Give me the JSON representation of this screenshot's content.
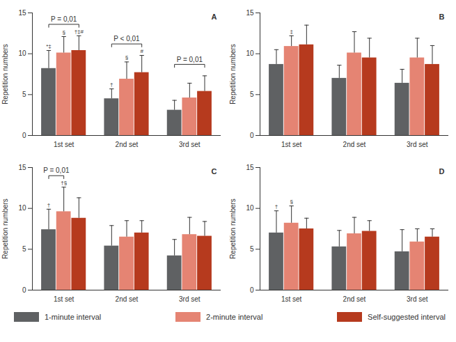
{
  "chart_data": {
    "type": "bar",
    "y_label": "Repetition numbers",
    "categories": [
      "1st set",
      "2nd set",
      "3rd set"
    ],
    "ylim": [
      0,
      15
    ],
    "yticks": [
      0,
      5,
      10,
      15
    ],
    "series": [
      {
        "name": "1-minute interval",
        "color": "#5f6163"
      },
      {
        "name": "2-minute interval",
        "color": "#e58473"
      },
      {
        "name": "Self-suggested interval",
        "color": "#b63a1e"
      }
    ],
    "panels": [
      {
        "title": "A",
        "values": [
          [
            8.2,
            4.5,
            3.1
          ],
          [
            10.1,
            6.9,
            4.6
          ],
          [
            10.4,
            7.7,
            5.4
          ]
        ],
        "errors": [
          [
            2.2,
            1.2,
            1.2
          ],
          [
            2.0,
            2.1,
            1.8
          ],
          [
            1.8,
            2.1,
            1.9
          ]
        ],
        "symbols": [
          [
            "*‡",
            "†",
            null
          ],
          [
            "§",
            "§",
            null
          ],
          [
            "†‡#",
            "#",
            null
          ]
        ],
        "brackets": [
          {
            "category": "1st set",
            "from": "1-minute interval",
            "to": "Self-suggested interval",
            "label": "P = 0,01"
          },
          {
            "category": "2nd set",
            "from": "1-minute interval",
            "to": "Self-suggested interval",
            "label": "P < 0,01"
          },
          {
            "category": "3rd set",
            "from": "1-minute interval",
            "to": "Self-suggested interval",
            "label": "P = 0,01"
          }
        ]
      },
      {
        "title": "B",
        "values": [
          [
            8.7,
            7.0,
            6.4
          ],
          [
            10.9,
            10.1,
            9.5
          ],
          [
            11.1,
            9.5,
            8.7
          ]
        ],
        "errors": [
          [
            1.8,
            1.6,
            1.7
          ],
          [
            1.3,
            2.6,
            2.4
          ],
          [
            2.4,
            2.4,
            2.3
          ]
        ],
        "symbols": [
          [
            null,
            null,
            null
          ],
          [
            "‡",
            null,
            null
          ],
          [
            null,
            null,
            null
          ]
        ],
        "brackets": []
      },
      {
        "title": "C",
        "values": [
          [
            7.4,
            5.4,
            4.2
          ],
          [
            9.6,
            6.5,
            6.8
          ],
          [
            8.8,
            7.0,
            6.6
          ]
        ],
        "errors": [
          [
            2.5,
            2.5,
            2.0
          ],
          [
            3.0,
            2.0,
            2.1
          ],
          [
            2.5,
            1.5,
            1.8
          ]
        ],
        "symbols": [
          [
            "†",
            null,
            null
          ],
          [
            "†§",
            null,
            null
          ],
          [
            null,
            null,
            null
          ]
        ],
        "brackets": [
          {
            "category": "1st set",
            "from": "1-minute interval",
            "to": "2-minute interval",
            "label": "P = 0,01"
          }
        ]
      },
      {
        "title": "D",
        "values": [
          [
            7.0,
            5.3,
            4.7
          ],
          [
            8.2,
            6.9,
            5.9
          ],
          [
            7.5,
            7.2,
            6.5
          ]
        ],
        "errors": [
          [
            2.7,
            2.0,
            2.7
          ],
          [
            2.1,
            2.0,
            1.6
          ],
          [
            1.3,
            1.3,
            1.0
          ]
        ],
        "symbols": [
          [
            "†",
            null,
            null
          ],
          [
            "§",
            null,
            null
          ],
          [
            null,
            null,
            null
          ]
        ],
        "brackets": []
      }
    ]
  }
}
